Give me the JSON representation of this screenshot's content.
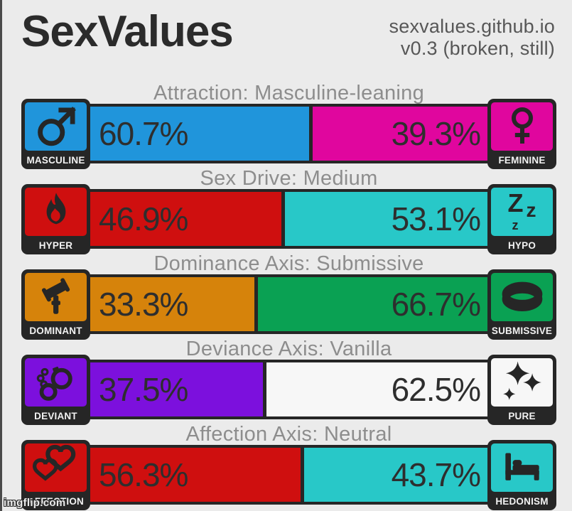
{
  "header": {
    "title": "SexValues",
    "site_line1": "sexvalues.github.io",
    "site_line2": "v0.3 (broken, still)"
  },
  "watermark": "imgflip.com",
  "rows": [
    {
      "title": "Attraction: Masculine-leaning",
      "left": {
        "label": "MASCULINE",
        "pct_label": "60.7%",
        "value": 60.7,
        "color": "#2095db",
        "icon": "male-icon"
      },
      "right": {
        "label": "FEMININE",
        "pct_label": "39.3%",
        "value": 39.3,
        "color": "#e0069e",
        "icon": "female-icon"
      }
    },
    {
      "title": "Sex Drive: Medium",
      "left": {
        "label": "HYPER",
        "pct_label": "46.9%",
        "value": 46.9,
        "color": "#cf0f0f",
        "icon": "flame-icon"
      },
      "right": {
        "label": "HYPO",
        "pct_label": "53.1%",
        "value": 53.1,
        "color": "#28c8c8",
        "icon": "zz-icon"
      }
    },
    {
      "title": "Dominance Axis: Submissive",
      "left": {
        "label": "DOMINANT",
        "pct_label": "33.3%",
        "value": 33.3,
        "color": "#d6830b",
        "icon": "gavel-icon"
      },
      "right": {
        "label": "SUBMISSIVE",
        "pct_label": "66.7%",
        "value": 66.7,
        "color": "#0aa153",
        "icon": "collar-icon"
      }
    },
    {
      "title": "Deviance Axis: Vanilla",
      "left": {
        "label": "DEVIANT",
        "pct_label": "37.5%",
        "value": 37.5,
        "color": "#7c10dd",
        "icon": "handcuffs-icon"
      },
      "right": {
        "label": "PURE",
        "pct_label": "62.5%",
        "value": 62.5,
        "color": "#f7f7f7",
        "icon": "sparkles-icon"
      }
    },
    {
      "title": "Affection Axis: Neutral",
      "left": {
        "label": "AFFECTION",
        "pct_label": "56.3%",
        "value": 56.3,
        "color": "#cf0f0f",
        "icon": "hearts-icon"
      },
      "right": {
        "label": "HEDONISM",
        "pct_label": "43.7%",
        "value": 43.7,
        "color": "#28c8c8",
        "icon": "bed-icon"
      }
    }
  ],
  "chart_data": {
    "type": "bar",
    "title": "SexValues",
    "subtitle": "sexvalues.github.io v0.3 (broken, still)",
    "categories": [
      "Attraction",
      "Sex Drive",
      "Dominance Axis",
      "Deviance Axis",
      "Affection Axis"
    ],
    "results": [
      "Masculine-leaning",
      "Medium",
      "Submissive",
      "Vanilla",
      "Neutral"
    ],
    "series": [
      {
        "name": "left",
        "labels": [
          "Masculine",
          "Hyper",
          "Dominant",
          "Deviant",
          "Affection"
        ],
        "values": [
          60.7,
          46.9,
          33.3,
          37.5,
          56.3
        ],
        "colors": [
          "#2095db",
          "#cf0f0f",
          "#d6830b",
          "#7c10dd",
          "#cf0f0f"
        ]
      },
      {
        "name": "right",
        "labels": [
          "Feminine",
          "Hypo",
          "Submissive",
          "Pure",
          "Hedonism"
        ],
        "values": [
          39.3,
          53.1,
          66.7,
          62.5,
          43.7
        ],
        "colors": [
          "#e0069e",
          "#28c8c8",
          "#0aa153",
          "#f7f7f7",
          "#28c8c8"
        ]
      }
    ],
    "value_format": "percent",
    "layout": "paired horizontal stacked bars, each pair sums to 100%"
  },
  "colors": {
    "background": "#ebebeb",
    "dark": "#262626",
    "row_title_gray": "#8d8d8d",
    "subtitle_gray": "#575757"
  }
}
